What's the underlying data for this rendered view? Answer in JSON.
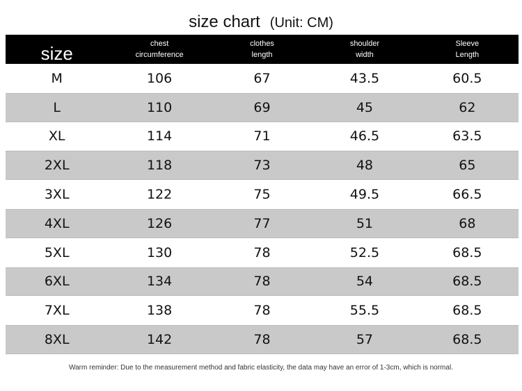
{
  "header": {
    "title": "size chart",
    "unit": "(Unit: CM)"
  },
  "table": {
    "columns": [
      [
        "size"
      ],
      [
        "chest",
        "circumference"
      ],
      [
        "clothes",
        "length"
      ],
      [
        "shoulder",
        "width"
      ],
      [
        "Sleeve",
        "Length"
      ]
    ],
    "rows": [
      [
        "M",
        "106",
        "67",
        "43.5",
        "60.5"
      ],
      [
        "L",
        "110",
        "69",
        "45",
        "62"
      ],
      [
        "XL",
        "114",
        "71",
        "46.5",
        "63.5"
      ],
      [
        "2XL",
        "118",
        "73",
        "48",
        "65"
      ],
      [
        "3XL",
        "122",
        "75",
        "49.5",
        "66.5"
      ],
      [
        "4XL",
        "126",
        "77",
        "51",
        "68"
      ],
      [
        "5XL",
        "130",
        "78",
        "52.5",
        "68.5"
      ],
      [
        "6XL",
        "134",
        "78",
        "54",
        "68.5"
      ],
      [
        "7XL",
        "138",
        "78",
        "55.5",
        "68.5"
      ],
      [
        "8XL",
        "142",
        "78",
        "57",
        "68.5"
      ]
    ]
  },
  "footnote": "Warm reminder: Due to the measurement method and fabric elasticity, the data may have an error of 1-3cm, which is normal."
}
